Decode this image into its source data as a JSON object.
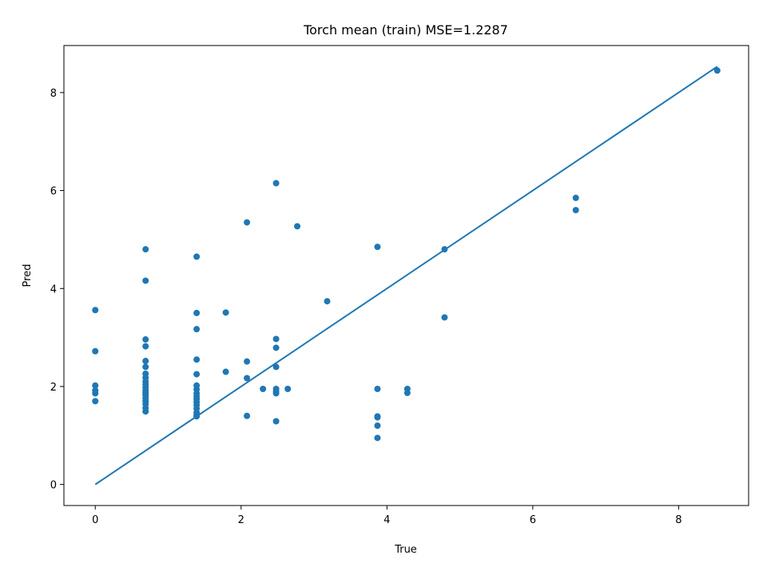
{
  "chart_data": {
    "type": "scatter",
    "title": "Torch mean (train) MSE=1.2287",
    "xlabel": "True",
    "ylabel": "Pred",
    "xlim": [
      -0.43,
      8.96
    ],
    "ylim": [
      -0.43,
      8.96
    ],
    "xticks": [
      0,
      2,
      4,
      6,
      8
    ],
    "yticks": [
      0,
      2,
      4,
      6,
      8
    ],
    "grid": false,
    "color": "#1f77b4",
    "series": [
      {
        "kind": "line",
        "x": [
          0,
          8.53
        ],
        "y": [
          0,
          8.53
        ]
      },
      {
        "kind": "scatter",
        "x": [
          0,
          0,
          0,
          0,
          0,
          0,
          0.69,
          0.69,
          0.69,
          0.69,
          0.69,
          0.69,
          0.69,
          0.69,
          0.69,
          0.69,
          0.69,
          0.69,
          0.69,
          0.69,
          0.69,
          0.69,
          0.69,
          0.69,
          0.69,
          0.69,
          1.39,
          1.39,
          1.39,
          1.39,
          1.39,
          1.39,
          1.39,
          1.39,
          1.39,
          1.39,
          1.39,
          1.39,
          1.39,
          1.39,
          1.39,
          1.39,
          1.79,
          1.79,
          2.08,
          2.08,
          2.08,
          2.08,
          2.3,
          2.48,
          2.48,
          2.48,
          2.48,
          2.48,
          2.48,
          2.48,
          2.48,
          2.64,
          2.77,
          3.18,
          3.87,
          3.87,
          3.87,
          3.87,
          3.87,
          3.87,
          4.28,
          4.28,
          4.79,
          4.79,
          6.59,
          6.59,
          8.53
        ],
        "y": [
          3.56,
          2.72,
          2.02,
          1.92,
          1.86,
          1.7,
          4.8,
          4.16,
          2.96,
          2.82,
          2.52,
          2.4,
          2.26,
          2.18,
          2.1,
          2.04,
          1.98,
          1.92,
          1.86,
          1.82,
          1.76,
          1.7,
          1.64,
          1.56,
          1.49,
          1.88,
          4.65,
          3.5,
          3.17,
          2.55,
          2.25,
          2.02,
          1.94,
          1.86,
          1.8,
          1.74,
          1.68,
          1.62,
          1.55,
          1.47,
          1.42,
          1.39,
          3.51,
          2.3,
          5.35,
          2.51,
          2.17,
          1.4,
          1.95,
          6.15,
          2.97,
          2.79,
          2.4,
          1.95,
          1.9,
          1.86,
          1.29,
          1.95,
          5.27,
          3.74,
          4.85,
          1.95,
          1.39,
          1.37,
          1.2,
          0.95,
          1.95,
          1.87,
          4.8,
          3.41,
          5.85,
          5.6,
          8.45
        ]
      }
    ]
  }
}
